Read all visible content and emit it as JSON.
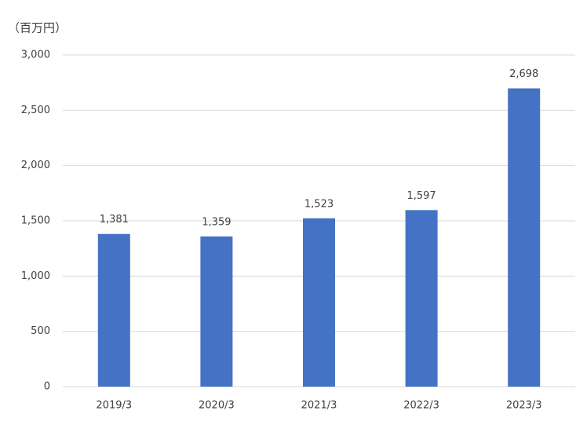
{
  "chart_data": {
    "type": "bar",
    "y_label": "（百万円）",
    "categories": [
      "2019/3",
      "2020/3",
      "2021/3",
      "2022/3",
      "2023/3"
    ],
    "values": [
      1381,
      1359,
      1523,
      1597,
      2698
    ],
    "value_labels": [
      "1,381",
      "1,359",
      "1,523",
      "1,597",
      "2,698"
    ],
    "color": "#4472c4",
    "ylim": [
      0,
      3000
    ],
    "yticks": [
      0,
      500,
      {
        "value": 1000,
        "label": "1,000"
      },
      {
        "value": 1500,
        "label": "1,500"
      },
      {
        "value": 2000,
        "label": "2,000"
      },
      {
        "value": 2500,
        "label": "2,500"
      },
      {
        "value": 3000,
        "label": "3,000"
      }
    ],
    "grid": true
  }
}
